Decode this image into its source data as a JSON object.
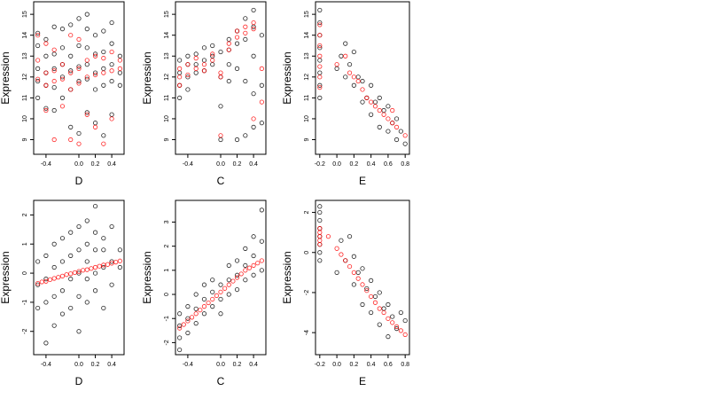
{
  "colors": {
    "background": "#ffffff",
    "axis": "#000000",
    "black_series": "#000000",
    "red_series": "#ff0000"
  },
  "chart_data": [
    {
      "type": "scatter",
      "panel": "top-left",
      "xlabel": "D",
      "ylabel": "Expression",
      "xlim": [
        -0.55,
        0.55
      ],
      "ylim": [
        8.3,
        15.6
      ],
      "xticks": [
        -0.4,
        0.0,
        0.2,
        0.4
      ],
      "xtick_labels": [
        "-0.4",
        "0.0",
        "0.2",
        "0.4"
      ],
      "yticks": [
        9,
        10,
        11,
        12,
        13,
        14,
        15
      ],
      "ytick_labels": [
        "9",
        "10",
        "11",
        "12",
        "13",
        "14",
        "15"
      ],
      "grid": false,
      "legend": "none",
      "series": [
        {
          "color": "#000000",
          "marker": "open-circle",
          "x": [
            -0.5,
            -0.5,
            -0.5,
            -0.5,
            -0.5,
            -0.4,
            -0.4,
            -0.4,
            -0.4,
            -0.4,
            -0.3,
            -0.3,
            -0.3,
            -0.3,
            -0.3,
            -0.2,
            -0.2,
            -0.2,
            -0.2,
            -0.2,
            -0.1,
            -0.1,
            -0.1,
            -0.1,
            -0.1,
            0.0,
            0.0,
            0.0,
            0.0,
            0.0,
            0.1,
            0.1,
            0.1,
            0.1,
            0.1,
            0.1,
            0.2,
            0.2,
            0.2,
            0.2,
            0.2,
            0.3,
            0.3,
            0.3,
            0.3,
            0.3,
            0.4,
            0.4,
            0.4,
            0.4,
            0.4,
            0.5,
            0.5,
            0.5
          ],
          "y": [
            11.0,
            11.8,
            12.4,
            13.5,
            14.1,
            10.5,
            11.6,
            12.2,
            13.0,
            13.8,
            10.4,
            11.5,
            12.4,
            13.1,
            14.4,
            11.0,
            12.0,
            12.6,
            13.4,
            14.3,
            9.6,
            11.4,
            12.3,
            13.0,
            14.5,
            9.3,
            11.8,
            12.5,
            13.5,
            14.8,
            10.3,
            11.9,
            12.6,
            13.4,
            14.3,
            15.0,
            9.8,
            11.4,
            12.2,
            13.1,
            14.0,
            9.2,
            11.6,
            12.4,
            13.2,
            14.2,
            10.2,
            11.8,
            12.6,
            13.6,
            14.6,
            11.6,
            12.2,
            13.0
          ]
        },
        {
          "color": "#ff0000",
          "marker": "open-circle",
          "x": [
            -0.5,
            -0.5,
            -0.5,
            -0.4,
            -0.4,
            -0.4,
            -0.4,
            -0.3,
            -0.3,
            -0.3,
            -0.3,
            -0.2,
            -0.2,
            -0.2,
            -0.1,
            -0.1,
            -0.1,
            -0.1,
            0.0,
            0.0,
            0.0,
            0.0,
            0.1,
            0.1,
            0.1,
            0.2,
            0.2,
            0.2,
            0.3,
            0.3,
            0.3,
            0.4,
            0.4,
            0.4,
            0.5,
            0.5
          ],
          "y": [
            11.9,
            12.8,
            14.0,
            10.4,
            11.6,
            12.2,
            13.6,
            9.0,
            11.8,
            12.3,
            13.3,
            10.6,
            11.9,
            12.6,
            9.0,
            11.4,
            12.2,
            14.0,
            8.8,
            11.7,
            12.4,
            13.8,
            10.2,
            12.0,
            12.8,
            9.6,
            12.1,
            13.0,
            8.8,
            12.2,
            12.9,
            10.0,
            12.3,
            13.2,
            12.4,
            12.8
          ]
        }
      ]
    },
    {
      "type": "scatter",
      "panel": "top-middle",
      "xlabel": "C",
      "ylabel": "Expression",
      "xlim": [
        -0.55,
        0.55
      ],
      "ylim": [
        8.3,
        15.6
      ],
      "xticks": [
        -0.4,
        0.0,
        0.2,
        0.4
      ],
      "xtick_labels": [
        "-0.4",
        "0.0",
        "0.2",
        "0.4"
      ],
      "yticks": [
        9,
        10,
        11,
        12,
        13,
        14,
        15
      ],
      "ytick_labels": [
        "9",
        "10",
        "11",
        "12",
        "13",
        "14",
        "15"
      ],
      "grid": false,
      "legend": "none",
      "series": [
        {
          "color": "#000000",
          "marker": "open-circle",
          "x": [
            -0.5,
            -0.5,
            -0.5,
            -0.5,
            -0.4,
            -0.4,
            -0.4,
            -0.4,
            -0.3,
            -0.3,
            -0.3,
            -0.2,
            -0.2,
            -0.2,
            -0.1,
            -0.1,
            -0.1,
            0.0,
            0.0,
            0.0,
            0.0,
            0.1,
            0.1,
            0.1,
            0.1,
            0.2,
            0.2,
            0.2,
            0.2,
            0.3,
            0.3,
            0.3,
            0.3,
            0.4,
            0.4,
            0.4,
            0.4,
            0.4,
            0.5,
            0.5,
            0.5
          ],
          "y": [
            11.0,
            11.6,
            12.2,
            12.8,
            11.4,
            12.0,
            12.6,
            13.0,
            12.2,
            12.6,
            13.1,
            12.3,
            12.8,
            13.4,
            12.6,
            13.0,
            13.5,
            9.0,
            10.6,
            12.0,
            13.2,
            11.8,
            12.6,
            13.3,
            13.8,
            9.0,
            12.4,
            13.6,
            14.2,
            9.2,
            11.8,
            13.8,
            14.8,
            9.6,
            11.2,
            13.0,
            14.4,
            15.2,
            9.8,
            11.6,
            14.0
          ]
        },
        {
          "color": "#ff0000",
          "marker": "open-circle",
          "x": [
            -0.5,
            -0.5,
            -0.5,
            -0.4,
            -0.4,
            -0.3,
            -0.3,
            -0.2,
            -0.2,
            -0.1,
            -0.1,
            0.0,
            0.0,
            0.0,
            0.1,
            0.1,
            0.2,
            0.2,
            0.3,
            0.3,
            0.4,
            0.4,
            0.4,
            0.5,
            0.5
          ],
          "y": [
            11.6,
            12.0,
            12.4,
            12.1,
            12.6,
            12.4,
            12.9,
            12.6,
            12.3,
            12.8,
            13.1,
            9.2,
            12.0,
            12.2,
            13.3,
            13.6,
            13.9,
            14.2,
            14.1,
            14.4,
            10.0,
            14.3,
            14.6,
            10.8,
            12.4
          ]
        }
      ]
    },
    {
      "type": "scatter",
      "panel": "top-right",
      "xlabel": "E",
      "ylabel": "Expression",
      "xlim": [
        -0.25,
        0.85
      ],
      "ylim": [
        8.3,
        15.6
      ],
      "xticks": [
        -0.2,
        0.0,
        0.2,
        0.4,
        0.6,
        0.8
      ],
      "xtick_labels": [
        "-0.2",
        "0.0",
        "0.2",
        "0.4",
        "0.6",
        "0.8"
      ],
      "yticks": [
        9,
        10,
        11,
        12,
        13,
        14,
        15
      ],
      "ytick_labels": [
        "9",
        "10",
        "11",
        "12",
        "13",
        "14",
        "15"
      ],
      "grid": false,
      "legend": "none",
      "series": [
        {
          "color": "#000000",
          "marker": "open-circle",
          "x": [
            -0.2,
            -0.2,
            -0.2,
            -0.2,
            -0.2,
            -0.2,
            -0.2,
            -0.2,
            0.0,
            0.05,
            0.1,
            0.1,
            0.15,
            0.2,
            0.2,
            0.25,
            0.3,
            0.3,
            0.35,
            0.4,
            0.4,
            0.45,
            0.5,
            0.5,
            0.55,
            0.6,
            0.6,
            0.65,
            0.7,
            0.7,
            0.75,
            0.8
          ],
          "y": [
            11.0,
            11.6,
            12.2,
            12.8,
            13.4,
            14.0,
            14.6,
            15.2,
            12.4,
            13.0,
            12.0,
            13.6,
            12.6,
            11.6,
            13.2,
            12.0,
            10.8,
            11.8,
            11.0,
            10.2,
            11.6,
            10.8,
            9.6,
            11.0,
            10.4,
            9.4,
            10.6,
            9.8,
            9.0,
            10.0,
            9.4,
            8.8
          ]
        },
        {
          "color": "#ff0000",
          "marker": "open-circle",
          "x": [
            -0.2,
            -0.2,
            -0.2,
            -0.2,
            -0.2,
            -0.2,
            -0.2,
            0.0,
            0.1,
            0.15,
            0.2,
            0.25,
            0.3,
            0.35,
            0.4,
            0.45,
            0.5,
            0.55,
            0.6,
            0.65,
            0.65,
            0.7,
            0.8
          ],
          "y": [
            11.5,
            12.0,
            12.5,
            13.0,
            13.5,
            14.0,
            14.5,
            12.6,
            13.0,
            12.2,
            12.0,
            11.8,
            11.4,
            11.0,
            10.8,
            10.6,
            10.4,
            10.2,
            10.0,
            10.4,
            9.8,
            9.6,
            9.2
          ]
        }
      ]
    },
    {
      "type": "scatter",
      "panel": "bottom-left",
      "xlabel": "D",
      "ylabel": "Expression",
      "xlim": [
        -0.55,
        0.55
      ],
      "ylim": [
        -2.8,
        2.5
      ],
      "xticks": [
        -0.4,
        0.0,
        0.2,
        0.4
      ],
      "xtick_labels": [
        "-0.4",
        "0.0",
        "0.2",
        "0.4"
      ],
      "yticks": [
        -2,
        -1,
        0,
        1,
        2
      ],
      "ytick_labels": [
        "-2",
        "-1",
        "0",
        "1",
        "2"
      ],
      "grid": false,
      "legend": "none",
      "series": [
        {
          "color": "#000000",
          "marker": "open-circle",
          "x": [
            -0.5,
            -0.5,
            -0.5,
            -0.4,
            -0.4,
            -0.4,
            -0.4,
            -0.3,
            -0.3,
            -0.3,
            -0.3,
            -0.2,
            -0.2,
            -0.2,
            -0.2,
            -0.1,
            -0.1,
            -0.1,
            -0.1,
            0.0,
            0.0,
            0.0,
            0.0,
            0.0,
            0.1,
            0.1,
            0.1,
            0.1,
            0.1,
            0.2,
            0.2,
            0.2,
            0.2,
            0.2,
            0.3,
            0.3,
            0.3,
            0.3,
            0.4,
            0.4,
            0.4,
            0.5,
            0.5
          ],
          "y": [
            -1.2,
            -0.4,
            0.4,
            -2.4,
            -1.0,
            -0.2,
            0.6,
            -1.8,
            -0.8,
            0.2,
            1.0,
            -1.4,
            -0.6,
            0.4,
            1.2,
            -1.2,
            -0.2,
            0.6,
            1.4,
            -2.0,
            -0.8,
            0.0,
            0.8,
            1.6,
            -1.0,
            -0.2,
            0.4,
            1.0,
            1.8,
            -0.6,
            0.0,
            0.8,
            1.4,
            2.3,
            -1.2,
            0.2,
            0.8,
            1.2,
            -0.4,
            0.4,
            1.6,
            0.2,
            0.8
          ]
        },
        {
          "color": "#ff0000",
          "marker": "open-circle",
          "x": [
            -0.5,
            -0.45,
            -0.4,
            -0.35,
            -0.3,
            -0.25,
            -0.2,
            -0.15,
            -0.1,
            -0.05,
            0.0,
            0.05,
            0.1,
            0.15,
            0.2,
            0.25,
            0.3,
            0.35,
            0.4,
            0.45,
            0.5
          ],
          "y": [
            -0.35,
            -0.3,
            -0.28,
            -0.22,
            -0.18,
            -0.14,
            -0.1,
            -0.05,
            -0.02,
            0.02,
            0.06,
            0.1,
            0.12,
            0.16,
            0.2,
            0.24,
            0.28,
            0.3,
            0.34,
            0.38,
            0.42
          ]
        }
      ]
    },
    {
      "type": "scatter",
      "panel": "bottom-middle",
      "xlabel": "C",
      "ylabel": "Expression",
      "xlim": [
        -0.55,
        0.55
      ],
      "ylim": [
        -2.5,
        3.9
      ],
      "xticks": [
        -0.4,
        0.0,
        0.2,
        0.4
      ],
      "xtick_labels": [
        "-0.4",
        "0.0",
        "0.2",
        "0.4"
      ],
      "yticks": [
        -2,
        -1,
        0,
        1,
        2,
        3
      ],
      "ytick_labels": [
        "-2",
        "-1",
        "0",
        "1",
        "2",
        "3"
      ],
      "grid": false,
      "legend": "none",
      "series": [
        {
          "color": "#000000",
          "marker": "open-circle",
          "x": [
            -0.5,
            -0.5,
            -0.5,
            -0.5,
            -0.4,
            -0.4,
            -0.4,
            -0.3,
            -0.3,
            -0.3,
            -0.2,
            -0.2,
            -0.2,
            -0.1,
            -0.1,
            -0.1,
            0.0,
            0.0,
            0.0,
            0.1,
            0.1,
            0.1,
            0.2,
            0.2,
            0.2,
            0.3,
            0.3,
            0.3,
            0.4,
            0.4,
            0.4,
            0.5,
            0.5,
            0.5
          ],
          "y": [
            -2.3,
            -1.8,
            -1.3,
            -0.8,
            -1.6,
            -1.0,
            -0.5,
            -1.2,
            -0.6,
            0.0,
            -0.8,
            -0.2,
            0.4,
            -0.5,
            0.1,
            0.6,
            -0.8,
            -0.2,
            0.4,
            0.0,
            0.6,
            1.2,
            0.2,
            0.8,
            1.4,
            0.6,
            1.2,
            1.9,
            0.8,
            1.6,
            2.4,
            1.0,
            2.2,
            3.5
          ]
        },
        {
          "color": "#ff0000",
          "marker": "open-circle",
          "x": [
            -0.5,
            -0.45,
            -0.4,
            -0.35,
            -0.3,
            -0.25,
            -0.2,
            -0.15,
            -0.1,
            -0.05,
            0.0,
            0.05,
            0.1,
            0.15,
            0.2,
            0.25,
            0.3,
            0.35,
            0.4,
            0.45,
            0.5
          ],
          "y": [
            -1.4,
            -1.25,
            -1.1,
            -0.95,
            -0.8,
            -0.65,
            -0.5,
            -0.35,
            -0.2,
            -0.05,
            0.1,
            0.25,
            0.4,
            0.55,
            0.7,
            0.85,
            1.0,
            1.1,
            1.2,
            1.3,
            1.4
          ]
        }
      ]
    },
    {
      "type": "scatter",
      "panel": "bottom-right",
      "xlabel": "E",
      "ylabel": "Expression",
      "xlim": [
        -0.25,
        0.85
      ],
      "ylim": [
        -5.1,
        2.6
      ],
      "xticks": [
        -0.2,
        0.0,
        0.2,
        0.4,
        0.6,
        0.8
      ],
      "xtick_labels": [
        "-0.2",
        "0.0",
        "0.2",
        "0.4",
        "0.6",
        "0.8"
      ],
      "yticks": [
        -4,
        -2,
        0,
        2
      ],
      "ytick_labels": [
        "-4",
        "-2",
        "0",
        "2"
      ],
      "grid": false,
      "legend": "none",
      "series": [
        {
          "color": "#000000",
          "marker": "open-circle",
          "x": [
            -0.2,
            -0.2,
            -0.2,
            -0.2,
            -0.2,
            -0.2,
            -0.2,
            -0.2,
            0.0,
            0.05,
            0.1,
            0.15,
            0.2,
            0.2,
            0.25,
            0.3,
            0.3,
            0.35,
            0.4,
            0.4,
            0.45,
            0.5,
            0.5,
            0.55,
            0.6,
            0.6,
            0.65,
            0.7,
            0.75,
            0.8
          ],
          "y": [
            -0.4,
            0.0,
            0.4,
            0.8,
            1.2,
            1.6,
            2.0,
            2.3,
            -1.0,
            0.6,
            -0.4,
            0.8,
            -1.6,
            -0.2,
            -1.0,
            -2.6,
            -0.8,
            -1.8,
            -3.0,
            -1.4,
            -2.2,
            -3.6,
            -2.0,
            -2.8,
            -4.2,
            -2.6,
            -3.2,
            -3.8,
            -3.0,
            -3.4
          ]
        },
        {
          "color": "#ff0000",
          "marker": "open-circle",
          "x": [
            -0.2,
            -0.2,
            -0.2,
            -0.2,
            -0.2,
            -0.1,
            0.0,
            0.05,
            0.1,
            0.15,
            0.2,
            0.25,
            0.3,
            0.35,
            0.4,
            0.45,
            0.5,
            0.55,
            0.6,
            0.65,
            0.7,
            0.75,
            0.8
          ],
          "y": [
            0.4,
            0.6,
            0.8,
            1.0,
            1.2,
            0.8,
            0.2,
            -0.1,
            -0.4,
            -0.7,
            -1.0,
            -1.3,
            -1.6,
            -1.9,
            -2.2,
            -2.5,
            -2.8,
            -3.0,
            -3.3,
            -3.5,
            -3.7,
            -3.9,
            -4.1
          ]
        }
      ]
    }
  ]
}
